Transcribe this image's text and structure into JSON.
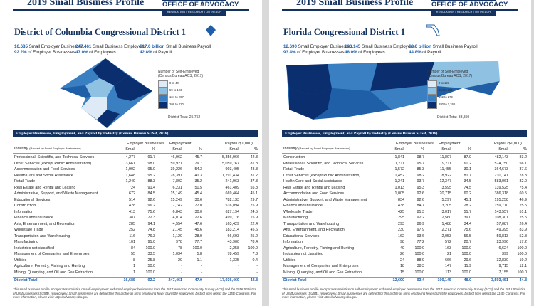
{
  "pages": [
    {
      "header_title": "2019 Small Business Profile",
      "logo_title": "OFFICE OF ADVOCACY",
      "logo_sub": "REGULATION • RESEARCH • OUTREACH",
      "district": "District of Columbia Congressional District 1",
      "stats": [
        {
          "value": "16,685",
          "label": "Small Employer Businesses",
          "pct": "92.2%",
          "pct_label": "of Employer Businesses"
        },
        {
          "value": "247,461",
          "label": "Small Business Employees",
          "pct": "47.0%",
          "pct_label": "of Employees"
        },
        {
          "value": "$17.0 billion",
          "label": "Small Business Payroll",
          "pct": "42.8%",
          "pct_label": "of Payroll"
        }
      ],
      "legend": {
        "title": "Number of Self-Employed",
        "subtitle": "(Census Bureau ACS, 2017)",
        "items": [
          "0 to 40",
          "59 to 123",
          "124 to 207",
          "208 to 420"
        ],
        "colors": [
          "#deebf7",
          "#8fc1e3",
          "#3a7fc1",
          "#0b2f6e"
        ]
      },
      "district_total": "District Total: 25,752",
      "table": {
        "title": "Employer Businesses, Employment, and Payroll by Industry (Census Bureau SUSB, 2016)",
        "industry": "Industry",
        "industry_note": "(Ranked by Small Employer Businesses)",
        "groups": [
          "Employer Businesses",
          "Employment",
          "Payroll ($1,000)"
        ],
        "sub": [
          "Small",
          "%",
          "Small",
          "%",
          "Small",
          "%"
        ],
        "rows": [
          [
            "Professional, Scientific, and Technical Services",
            "4,277",
            "91.7",
            "46,962",
            "45.7",
            "5,356,966",
            "42.3"
          ],
          [
            "Other Services (except Public Administration)",
            "3,661",
            "98.0",
            "59,921",
            "79.7",
            "5,059,767",
            "81.8"
          ],
          [
            "Accommodation and Food Services",
            "1,902",
            "95.0",
            "39,226",
            "54.3",
            "993,495",
            "48.8"
          ],
          [
            "Health Care and Social Assistance",
            "1,648",
            "95.2",
            "28,391",
            "41.3",
            "1,291,434",
            "31.2"
          ],
          [
            "Retail Trade",
            "1,249",
            "88.3",
            "7,802",
            "35.2",
            "241,963",
            "37.3"
          ],
          [
            "Real Estate and Rental and Leasing",
            "724",
            "91.4",
            "6,231",
            "50.5",
            "461,409",
            "55.8"
          ],
          [
            "Administrative, Support, and Waste Management",
            "672",
            "84.5",
            "15,149",
            "45.4",
            "669,464",
            "45.1"
          ],
          [
            "Educational Services",
            "514",
            "92.6",
            "15,249",
            "30.6",
            "782,133",
            "29.7"
          ],
          [
            "Construction",
            "428",
            "96.2",
            "7,742",
            "77.0",
            "516,094",
            "75.9"
          ],
          [
            "Information",
            "413",
            "75.6",
            "6,843",
            "30.0",
            "627,194",
            "24.5"
          ],
          [
            "Finance and Insurance",
            "387",
            "72.3",
            "4,014",
            "22.6",
            "499,176",
            "15.9"
          ],
          [
            "Arts, Entertainment, and Recreation",
            "285",
            "94.1",
            "4,554",
            "47.6",
            "163,429",
            "22.4"
          ],
          [
            "Wholesale Trade",
            "252",
            "74.8",
            "2,145",
            "45.6",
            "183,214",
            "45.6"
          ],
          [
            "Transportation and Warehousing",
            "116",
            "76.3",
            "1,120",
            "28.9",
            "66,693",
            "25.2"
          ],
          [
            "Manufacturing",
            "101",
            "91.0",
            "978",
            "77.7",
            "43,900",
            "78.4"
          ],
          [
            "Industries not classified",
            "84",
            "100.0",
            "78",
            "100.0",
            "2,258",
            "100.0"
          ],
          [
            "Management of Companies and Enterprises",
            "55",
            "33.5",
            "1,034",
            "5.8",
            "78,459",
            "7.3"
          ],
          [
            "Utilities",
            "8",
            "25.8",
            "20",
            "1.1",
            "1,335",
            "0.4"
          ],
          [
            "Agriculture, Forestry, Fishing and Hunting",
            "1",
            "50.0",
            "-",
            "-",
            "-",
            "-"
          ],
          [
            "Mining, Quarrying, and Oil and Gas Extraction",
            "1",
            "100.0",
            "-",
            "-",
            "-",
            "-"
          ]
        ],
        "total": [
          "District Total",
          "16,685",
          "92.2",
          "247,461",
          "47.0",
          "17,036,469",
          "42.8"
        ]
      },
      "footer": "This small business profile incorporates statistics on self-employment and small employer businesses from the 2017 American Community Survey (ACS) and the 2016 Statistics of US Businesses (SUSB), respectively. Small businesses are defined for this profile as firms employing fewer than 500 employees. District lines reflect the 115th Congress. For more information, please visit: http://advocacy.sba.gov."
    },
    {
      "header_title": "2019 Small Business Profile",
      "logo_title": "OFFICE OF ADVOCACY",
      "logo_sub": "REGULATION • RESEARCH • OUTREACH",
      "district": "Florida Congressional District 1",
      "stats": [
        {
          "value": "12,690",
          "label": "Small Employer Businesses",
          "pct": "93.4%",
          "pct_label": "of Employer Businesses"
        },
        {
          "value": "100,145",
          "label": "Small Business Employees",
          "pct": "48.0%",
          "pct_label": "of Employees"
        },
        {
          "value": "$3.6 billion",
          "label": "Small Business Payroll",
          "pct": "44.8%",
          "pct_label": "of Payroll"
        }
      ],
      "legend": {
        "title": "Number of Self-Employed",
        "subtitle": "(Census Bureau ACS, 2017)",
        "items": [
          "0 to 123",
          "124 to 191",
          "192 to 279",
          "280 to 1,266"
        ],
        "colors": [
          "#deebf7",
          "#8fc1e3",
          "#3a7fc1",
          "#0b2f6e"
        ]
      },
      "district_total": "District Total: 33,850",
      "table": {
        "title": "Employer Businesses, Employment, and Payroll by Industry (Census Bureau SUSB, 2016)",
        "industry": "Industry",
        "industry_note": "(Ranked by Small Employer Businesses)",
        "groups": [
          "Employer Businesses",
          "Employment",
          "Payroll ($1,000)"
        ],
        "sub": [
          "Small",
          "%",
          "Small",
          "%",
          "Small",
          "%"
        ],
        "rows": [
          [
            "Construction",
            "1,841",
            "98.7",
            "11,807",
            "87.0",
            "482,143",
            "83.2"
          ],
          [
            "Professional, Scientific, and Technical Services",
            "1,711",
            "95.7",
            "9,711",
            "60.2",
            "574,750",
            "56.1"
          ],
          [
            "Retail Trade",
            "1,572",
            "85.3",
            "11,455",
            "30.1",
            "364,673",
            "37.6"
          ],
          [
            "Other Services (except Public Administration)",
            "1,452",
            "98.2",
            "8,922",
            "81.7",
            "210,141",
            "78.3"
          ],
          [
            "Health Care and Social Assistance",
            "1,241",
            "93.7",
            "12,347",
            "34.5",
            "583,061",
            "32.0"
          ],
          [
            "Real Estate and Rental and Leasing",
            "1,013",
            "95.3",
            "3,595",
            "74.5",
            "139,525",
            "75.4"
          ],
          [
            "Accommodation and Food Services",
            "1,005",
            "92.6",
            "20,715",
            "60.2",
            "386,318",
            "60.5"
          ],
          [
            "Administrative, Support, and Waste Management",
            "834",
            "92.6",
            "5,297",
            "45.1",
            "195,258",
            "46.9"
          ],
          [
            "Finance and Insurance",
            "438",
            "84.7",
            "3,205",
            "28.2",
            "159,710",
            "25.5"
          ],
          [
            "Wholesale Trade",
            "425",
            "81.3",
            "3,017",
            "51.7",
            "143,557",
            "51.1"
          ],
          [
            "Manufacturing",
            "295",
            "92.2",
            "2,560",
            "39.0",
            "108,301",
            "25.5"
          ],
          [
            "Transportation and Warehousing",
            "293",
            "86.9",
            "1,488",
            "34.4",
            "57,087",
            "26.4"
          ],
          [
            "Arts, Entertainment, and Recreation",
            "230",
            "97.9",
            "2,271",
            "75.6",
            "49,395",
            "83.9"
          ],
          [
            "Educational Services",
            "162",
            "93.6",
            "2,053",
            "56.5",
            "59,813",
            "52.8"
          ],
          [
            "Information",
            "98",
            "77.2",
            "572",
            "20.7",
            "23,996",
            "17.2"
          ],
          [
            "Agriculture, Forestry, Fishing and Hunting",
            "49",
            "100.0",
            "163",
            "100.0",
            "6,624",
            "100.0"
          ],
          [
            "Industries not classified",
            "26",
            "100.0",
            "21",
            "100.0",
            "399",
            "100.0"
          ],
          [
            "Utilities",
            "24",
            "88.9",
            "666",
            "29.6",
            "32,830",
            "19.2"
          ],
          [
            "Management of Companies and Enterprises",
            "18",
            "38.3",
            "147",
            "11.9",
            "9,715",
            "12.1"
          ],
          [
            "Mining, Quarrying, and Oil and Gas Extraction",
            "15",
            "100.0",
            "113",
            "100.0",
            "7,155",
            "100.0"
          ]
        ],
        "total": [
          "District Total",
          "12,690",
          "93.4",
          "100,145",
          "48.0",
          "3,593,451",
          "44.8"
        ]
      },
      "footer": "This small business profile incorporates statistics on self-employment and small employer businesses from the 2017 American Community Survey (ACS) and the 2016 Statistics of US Businesses (SUSB), respectively. Small businesses are defined for this profile as firms employing fewer than 500 employees. District lines reflect the 115th Congress. For more information, please visit: http://advocacy.sba.gov."
    }
  ]
}
